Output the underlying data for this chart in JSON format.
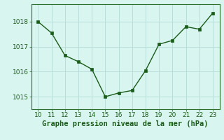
{
  "x": [
    10,
    11,
    12,
    13,
    14,
    15,
    16,
    17,
    18,
    19,
    20,
    21,
    22,
    23
  ],
  "y": [
    1018.0,
    1017.55,
    1016.65,
    1016.4,
    1016.1,
    1015.0,
    1015.15,
    1015.25,
    1016.05,
    1017.1,
    1017.25,
    1017.8,
    1017.7,
    1018.35
  ],
  "line_color": "#1a5c1a",
  "marker_color": "#1a5c1a",
  "bg_color": "#d9f5f0",
  "grid_color": "#b8ddd8",
  "xlabel": "Graphe pression niveau de la mer (hPa)",
  "xlabel_color": "#1a5c1a",
  "tick_color": "#1a5c1a",
  "spine_color": "#2d6e2d",
  "ylim": [
    1014.5,
    1018.7
  ],
  "xlim": [
    9.5,
    23.5
  ],
  "yticks": [
    1015,
    1016,
    1017,
    1018
  ],
  "xticks": [
    10,
    11,
    12,
    13,
    14,
    15,
    16,
    17,
    18,
    19,
    20,
    21,
    22,
    23
  ],
  "tick_fontsize": 6.5,
  "xlabel_fontsize": 7.5,
  "linewidth": 1.0,
  "markersize": 3.0
}
